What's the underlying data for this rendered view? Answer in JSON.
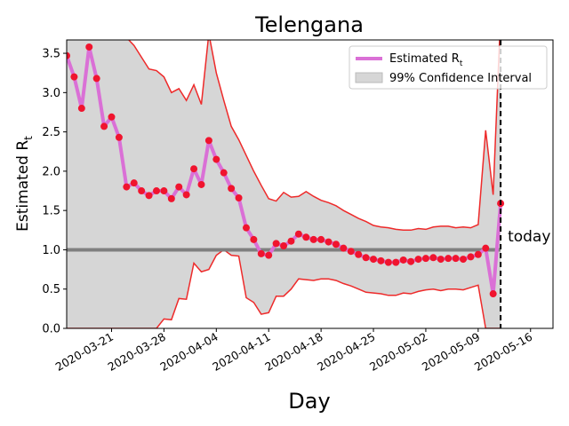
{
  "chart_data": {
    "type": "line",
    "title": "Telengana",
    "xlabel": "Day",
    "ylabel": "Estimated R",
    "ylabel_sub": "t",
    "x": [
      "2020-03-15",
      "2020-03-16",
      "2020-03-17",
      "2020-03-18",
      "2020-03-19",
      "2020-03-20",
      "2020-03-21",
      "2020-03-22",
      "2020-03-23",
      "2020-03-24",
      "2020-03-25",
      "2020-03-26",
      "2020-03-27",
      "2020-03-28",
      "2020-03-29",
      "2020-03-30",
      "2020-03-31",
      "2020-04-01",
      "2020-04-02",
      "2020-04-03",
      "2020-04-04",
      "2020-04-05",
      "2020-04-06",
      "2020-04-07",
      "2020-04-08",
      "2020-04-09",
      "2020-04-10",
      "2020-04-11",
      "2020-04-12",
      "2020-04-13",
      "2020-04-14",
      "2020-04-15",
      "2020-04-16",
      "2020-04-17",
      "2020-04-18",
      "2020-04-19",
      "2020-04-20",
      "2020-04-21",
      "2020-04-22",
      "2020-04-23",
      "2020-04-24",
      "2020-04-25",
      "2020-04-26",
      "2020-04-27",
      "2020-04-28",
      "2020-04-29",
      "2020-04-30",
      "2020-05-01",
      "2020-05-02",
      "2020-05-03",
      "2020-05-04",
      "2020-05-05",
      "2020-05-06",
      "2020-05-07",
      "2020-05-08",
      "2020-05-09",
      "2020-05-10",
      "2020-05-11",
      "2020-05-12"
    ],
    "series": [
      {
        "name": "Estimated R",
        "name_sub": "t",
        "color": "#da70d6",
        "point_color": "#f0142e",
        "values": [
          3.47,
          3.2,
          2.8,
          3.58,
          3.18,
          2.57,
          2.69,
          2.43,
          1.8,
          1.85,
          1.75,
          1.69,
          1.75,
          1.75,
          1.65,
          1.8,
          1.7,
          2.03,
          1.83,
          2.39,
          2.15,
          1.98,
          1.78,
          1.66,
          1.28,
          1.13,
          0.95,
          0.93,
          1.08,
          1.05,
          1.11,
          1.2,
          1.16,
          1.13,
          1.13,
          1.1,
          1.07,
          1.02,
          0.98,
          0.94,
          0.9,
          0.88,
          0.86,
          0.84,
          0.84,
          0.87,
          0.85,
          0.88,
          0.89,
          0.9,
          0.88,
          0.89,
          0.89,
          0.88,
          0.91,
          0.94,
          1.02,
          0.44,
          1.59
        ]
      }
    ],
    "interval": {
      "name": "99% Confidence Interval",
      "color": "#d6d6d6",
      "line_color": "#ee2a2a",
      "upper": [
        4.5,
        4.3,
        4.0,
        4.6,
        4.3,
        3.9,
        3.9,
        3.75,
        3.7,
        3.6,
        3.45,
        3.3,
        3.28,
        3.2,
        3.0,
        3.05,
        2.9,
        3.1,
        2.85,
        3.75,
        3.25,
        2.9,
        2.57,
        2.4,
        2.2,
        2.0,
        1.82,
        1.65,
        1.62,
        1.73,
        1.67,
        1.68,
        1.74,
        1.68,
        1.63,
        1.6,
        1.56,
        1.5,
        1.45,
        1.4,
        1.36,
        1.31,
        1.29,
        1.28,
        1.26,
        1.25,
        1.25,
        1.27,
        1.26,
        1.29,
        1.3,
        1.3,
        1.28,
        1.29,
        1.28,
        1.32,
        2.52,
        1.7,
        4.0
      ],
      "lower": [
        0,
        0,
        0,
        0,
        0,
        0,
        0,
        0,
        0,
        0,
        0,
        0,
        0,
        0.12,
        0.11,
        0.38,
        0.37,
        0.83,
        0.72,
        0.75,
        0.93,
        1.0,
        0.93,
        0.92,
        0.39,
        0.33,
        0.18,
        0.2,
        0.41,
        0.41,
        0.5,
        0.63,
        0.62,
        0.61,
        0.63,
        0.63,
        0.61,
        0.57,
        0.54,
        0.5,
        0.46,
        0.45,
        0.44,
        0.42,
        0.42,
        0.45,
        0.44,
        0.47,
        0.49,
        0.5,
        0.48,
        0.5,
        0.5,
        0.49,
        0.52,
        0.55,
        0,
        0,
        0
      ]
    },
    "reference_line": {
      "value": 1.0,
      "color": "#808080"
    },
    "today": {
      "x": "2020-05-12",
      "label": "today"
    },
    "xlim": [
      "2020-03-15",
      "2020-05-19"
    ],
    "xticks": [
      "2020-03-21",
      "2020-03-28",
      "2020-04-04",
      "2020-04-11",
      "2020-04-18",
      "2020-04-25",
      "2020-05-02",
      "2020-05-09",
      "2020-05-16"
    ],
    "ylim": [
      0,
      3.67
    ],
    "yticks": [
      {
        "value": 0,
        "label": "0.0"
      },
      {
        "value": 0.5,
        "label": "0.5"
      },
      {
        "value": 1,
        "label": "1.0"
      },
      {
        "value": 1.5,
        "label": "1.5"
      },
      {
        "value": 2,
        "label": "2.0"
      },
      {
        "value": 2.5,
        "label": "2.5"
      },
      {
        "value": 3,
        "label": "3.0"
      },
      {
        "value": 3.5,
        "label": "3.5"
      }
    ],
    "legend": "upper right"
  }
}
